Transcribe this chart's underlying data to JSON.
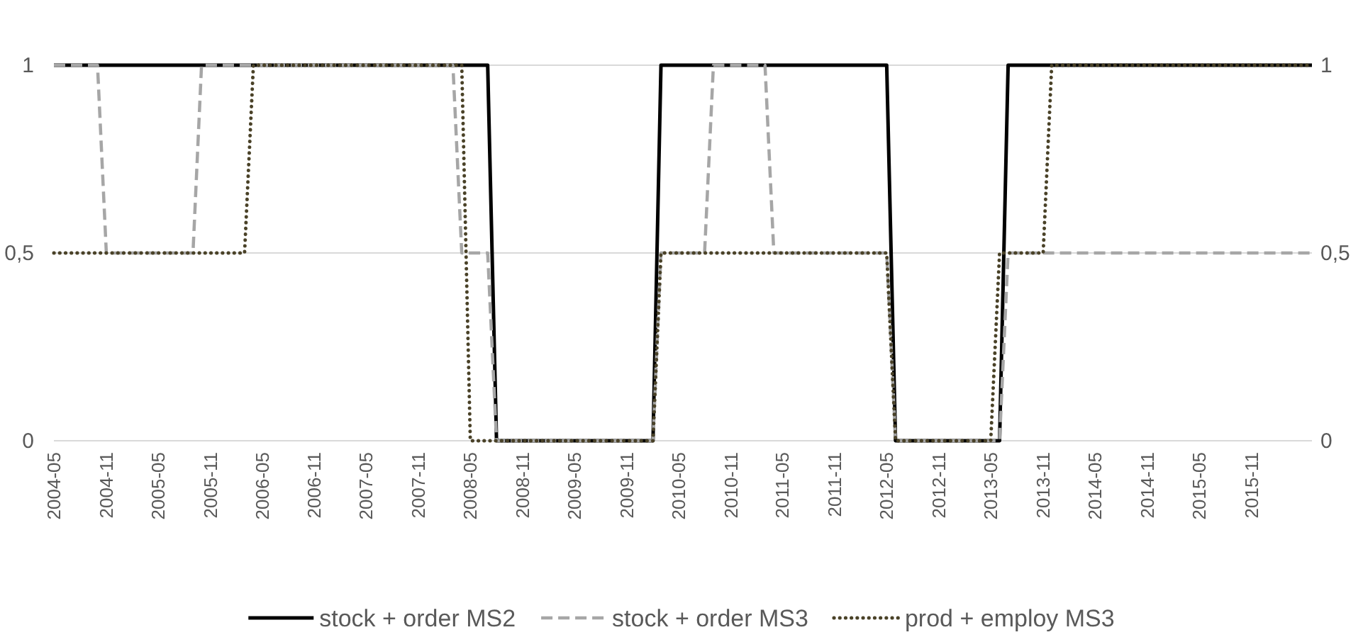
{
  "chart_data": {
    "type": "line",
    "x": [
      "2004-05",
      "2004-06",
      "2004-07",
      "2004-08",
      "2004-09",
      "2004-10",
      "2004-11",
      "2004-12",
      "2005-01",
      "2005-02",
      "2005-03",
      "2005-04",
      "2005-05",
      "2005-06",
      "2005-07",
      "2005-08",
      "2005-09",
      "2005-10",
      "2005-11",
      "2005-12",
      "2006-01",
      "2006-02",
      "2006-03",
      "2006-04",
      "2006-05",
      "2006-06",
      "2006-07",
      "2006-08",
      "2006-09",
      "2006-10",
      "2006-11",
      "2006-12",
      "2007-01",
      "2007-02",
      "2007-03",
      "2007-04",
      "2007-05",
      "2007-06",
      "2007-07",
      "2007-08",
      "2007-09",
      "2007-10",
      "2007-11",
      "2007-12",
      "2008-01",
      "2008-02",
      "2008-03",
      "2008-04",
      "2008-05",
      "2008-06",
      "2008-07",
      "2008-08",
      "2008-09",
      "2008-10",
      "2008-11",
      "2008-12",
      "2009-01",
      "2009-02",
      "2009-03",
      "2009-04",
      "2009-05",
      "2009-06",
      "2009-07",
      "2009-08",
      "2009-09",
      "2009-10",
      "2009-11",
      "2009-12",
      "2010-01",
      "2010-02",
      "2010-03",
      "2010-04",
      "2010-05",
      "2010-06",
      "2010-07",
      "2010-08",
      "2010-09",
      "2010-10",
      "2010-11",
      "2010-12",
      "2011-01",
      "2011-02",
      "2011-03",
      "2011-04",
      "2011-05",
      "2011-06",
      "2011-07",
      "2011-08",
      "2011-09",
      "2011-10",
      "2011-11",
      "2011-12",
      "2012-01",
      "2012-02",
      "2012-03",
      "2012-04",
      "2012-05",
      "2012-06",
      "2012-07",
      "2012-08",
      "2012-09",
      "2012-10",
      "2012-11",
      "2012-12",
      "2013-01",
      "2013-02",
      "2013-03",
      "2013-04",
      "2013-05",
      "2013-06",
      "2013-07",
      "2013-08",
      "2013-09",
      "2013-10",
      "2013-11",
      "2013-12",
      "2014-01",
      "2014-02",
      "2014-03",
      "2014-04",
      "2014-05",
      "2014-06",
      "2014-07",
      "2014-08",
      "2014-09",
      "2014-10",
      "2014-11",
      "2014-12",
      "2015-01",
      "2015-02",
      "2015-03",
      "2015-04",
      "2015-05",
      "2015-06",
      "2015-07",
      "2015-08",
      "2015-09",
      "2015-10",
      "2015-11",
      "2015-12",
      "2016-01",
      "2016-02",
      "2016-03",
      "2016-04",
      "2016-05",
      "2016-06"
    ],
    "series": [
      {
        "name": "stock + order MS2",
        "color": "#000000",
        "line_style": "solid",
        "values": [
          1,
          1,
          1,
          1,
          1,
          1,
          1,
          1,
          1,
          1,
          1,
          1,
          1,
          1,
          1,
          1,
          1,
          1,
          1,
          1,
          1,
          1,
          1,
          1,
          1,
          1,
          1,
          1,
          1,
          1,
          1,
          1,
          1,
          1,
          1,
          1,
          1,
          1,
          1,
          1,
          1,
          1,
          1,
          1,
          1,
          1,
          1,
          1,
          1,
          1,
          1,
          0,
          0,
          0,
          0,
          0,
          0,
          0,
          0,
          0,
          0,
          0,
          0,
          0,
          0,
          0,
          0,
          0,
          0,
          0,
          1,
          1,
          1,
          1,
          1,
          1,
          1,
          1,
          1,
          1,
          1,
          1,
          1,
          1,
          1,
          1,
          1,
          1,
          1,
          1,
          1,
          1,
          1,
          1,
          1,
          1,
          1,
          0,
          0,
          0,
          0,
          0,
          0,
          0,
          0,
          0,
          0,
          0,
          0,
          0,
          1,
          1,
          1,
          1,
          1,
          1,
          1,
          1,
          1,
          1,
          1,
          1,
          1,
          1,
          1,
          1,
          1,
          1,
          1,
          1,
          1,
          1,
          1,
          1,
          1,
          1,
          1,
          1,
          1,
          1,
          1,
          1,
          1,
          1,
          1,
          1
        ]
      },
      {
        "name": "stock + order MS3",
        "color": "#a6a6a6",
        "line_style": "dashed",
        "values": [
          1,
          1,
          1,
          1,
          1,
          1,
          0.5,
          0.5,
          0.5,
          0.5,
          0.5,
          0.5,
          0.5,
          0.5,
          0.5,
          0.5,
          0.5,
          1,
          1,
          1,
          1,
          1,
          1,
          1,
          1,
          1,
          1,
          1,
          1,
          1,
          1,
          1,
          1,
          1,
          1,
          1,
          1,
          1,
          1,
          1,
          1,
          1,
          1,
          1,
          1,
          1,
          1,
          0.5,
          0.5,
          0.5,
          0.5,
          0,
          0,
          0,
          0,
          0,
          0,
          0,
          0,
          0,
          0,
          0,
          0,
          0,
          0,
          0,
          0,
          0,
          0,
          0,
          0.5,
          0.5,
          0.5,
          0.5,
          0.5,
          0.5,
          1,
          1,
          1,
          1,
          1,
          1,
          1,
          0.5,
          0.5,
          0.5,
          0.5,
          0.5,
          0.5,
          0.5,
          0.5,
          0.5,
          0.5,
          0.5,
          0.5,
          0.5,
          0.5,
          0,
          0,
          0,
          0,
          0,
          0,
          0,
          0,
          0,
          0,
          0,
          0,
          0,
          0.5,
          0.5,
          0.5,
          0.5,
          0.5,
          0.5,
          0.5,
          0.5,
          0.5,
          0.5,
          0.5,
          0.5,
          0.5,
          0.5,
          0.5,
          0.5,
          0.5,
          0.5,
          0.5,
          0.5,
          0.5,
          0.5,
          0.5,
          0.5,
          0.5,
          0.5,
          0.5,
          0.5,
          0.5,
          0.5,
          0.5,
          0.5,
          0.5,
          0.5,
          0.5,
          0.5
        ]
      },
      {
        "name": "prod + employ MS3",
        "color": "#4a4228",
        "line_style": "dotted",
        "values": [
          0.5,
          0.5,
          0.5,
          0.5,
          0.5,
          0.5,
          0.5,
          0.5,
          0.5,
          0.5,
          0.5,
          0.5,
          0.5,
          0.5,
          0.5,
          0.5,
          0.5,
          0.5,
          0.5,
          0.5,
          0.5,
          0.5,
          0.5,
          1,
          1,
          1,
          1,
          1,
          1,
          1,
          1,
          1,
          1,
          1,
          1,
          1,
          1,
          1,
          1,
          1,
          1,
          1,
          1,
          1,
          1,
          1,
          1,
          1,
          0,
          0,
          0,
          0,
          0,
          0,
          0,
          0,
          0,
          0,
          0,
          0,
          0,
          0,
          0,
          0,
          0,
          0,
          0,
          0,
          0,
          0,
          0.5,
          0.5,
          0.5,
          0.5,
          0.5,
          0.5,
          0.5,
          0.5,
          0.5,
          0.5,
          0.5,
          0.5,
          0.5,
          0.5,
          0.5,
          0.5,
          0.5,
          0.5,
          0.5,
          0.5,
          0.5,
          0.5,
          0.5,
          0.5,
          0.5,
          0.5,
          0.5,
          0,
          0,
          0,
          0,
          0,
          0,
          0,
          0,
          0,
          0,
          0,
          0,
          0.5,
          0.5,
          0.5,
          0.5,
          0.5,
          0.5,
          1,
          1,
          1,
          1,
          1,
          1,
          1,
          1,
          1,
          1,
          1,
          1,
          1,
          1,
          1,
          1,
          1,
          1,
          1,
          1,
          1,
          1,
          1,
          1,
          1,
          1,
          1,
          1,
          1,
          1,
          1
        ]
      }
    ],
    "xlim": [
      "2004-05",
      "2016-06"
    ],
    "xticks": [
      "2004-05",
      "2004-11",
      "2005-05",
      "2005-11",
      "2006-05",
      "2006-11",
      "2007-05",
      "2007-11",
      "2008-05",
      "2008-11",
      "2009-05",
      "2009-11",
      "2010-05",
      "2010-11",
      "2011-05",
      "2011-11",
      "2012-05",
      "2012-11",
      "2013-05",
      "2013-11",
      "2014-05",
      "2014-11",
      "2015-05",
      "2015-11"
    ],
    "ylim": [
      0,
      1
    ],
    "yticks": [
      0,
      {
        "value": 0.5,
        "label": "0,5"
      },
      1
    ],
    "y2lim": [
      0,
      1
    ],
    "y2ticks": [
      0,
      {
        "value": 0.5,
        "label": "0,5"
      },
      1
    ],
    "grid": "y",
    "legend": "bottom"
  }
}
